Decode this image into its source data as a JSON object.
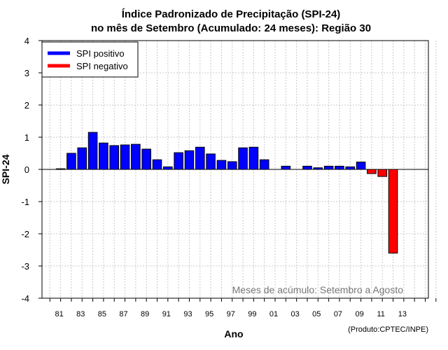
{
  "chart_data": {
    "type": "bar",
    "title_line1": "Índice Padronizado de Precipitação (SPI-24)",
    "title_line2": "no mês de Setembro (Acumulado: 24 meses): Região 30",
    "xlabel": "Ano",
    "ylabel": "SPI-24",
    "ylim": [
      -4,
      4
    ],
    "yticks": [
      "-4",
      "-3",
      "-2",
      "-1",
      "0",
      "1",
      "2",
      "3",
      "4"
    ],
    "xtick_labels": [
      "81",
      "83",
      "85",
      "87",
      "89",
      "91",
      "93",
      "95",
      "97",
      "99",
      "01",
      "03",
      "05",
      "07",
      "09",
      "11",
      "13"
    ],
    "categories": [
      "80",
      "81",
      "82",
      "83",
      "84",
      "85",
      "86",
      "87",
      "88",
      "89",
      "90",
      "91",
      "92",
      "93",
      "94",
      "95",
      "96",
      "97",
      "98",
      "99",
      "00",
      "01",
      "02",
      "03",
      "04",
      "05",
      "06",
      "07",
      "08",
      "09",
      "10",
      "11",
      "12",
      "13",
      "14",
      "15",
      "16"
    ],
    "values": [
      null,
      0.02,
      0.5,
      0.67,
      1.15,
      0.82,
      0.74,
      0.76,
      0.78,
      0.63,
      0.3,
      0.08,
      0.52,
      0.58,
      0.69,
      0.48,
      0.28,
      0.24,
      0.67,
      0.69,
      0.3,
      null,
      0.1,
      null,
      0.1,
      0.05,
      0.1,
      0.1,
      0.08,
      0.23,
      -0.13,
      -0.22,
      -2.6,
      null,
      null,
      null,
      null
    ],
    "legend": [
      {
        "label": "SPI positivo",
        "color": "#0000ff"
      },
      {
        "label": "SPI negativo",
        "color": "#ff0000"
      }
    ],
    "legend_position": "top-left",
    "positive_color": "#0000ff",
    "negative_color": "#ff0000",
    "annotation": "Meses de acúmulo: Setembro a Agosto",
    "credit": "(Produto:CPTEC/INPE)",
    "grid": true
  }
}
